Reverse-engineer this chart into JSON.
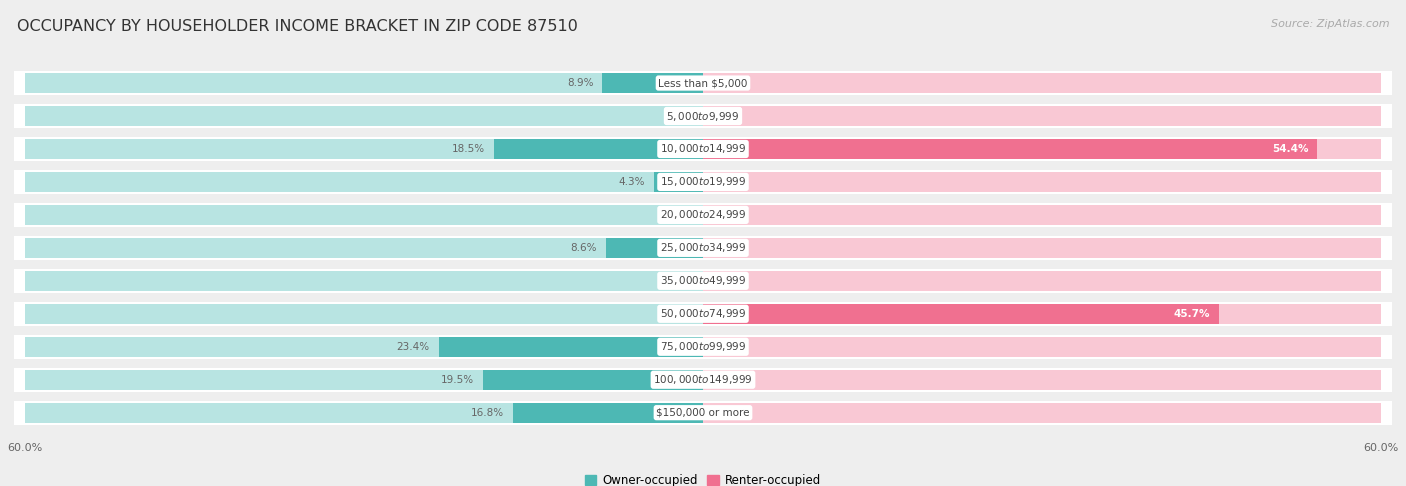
{
  "title": "OCCUPANCY BY HOUSEHOLDER INCOME BRACKET IN ZIP CODE 87510",
  "source": "Source: ZipAtlas.com",
  "categories": [
    "Less than $5,000",
    "$5,000 to $9,999",
    "$10,000 to $14,999",
    "$15,000 to $19,999",
    "$20,000 to $24,999",
    "$25,000 to $34,999",
    "$35,000 to $49,999",
    "$50,000 to $74,999",
    "$75,000 to $99,999",
    "$100,000 to $149,999",
    "$150,000 or more"
  ],
  "owner_values": [
    8.9,
    0.0,
    18.5,
    4.3,
    0.0,
    8.6,
    0.0,
    0.0,
    23.4,
    19.5,
    16.8
  ],
  "renter_values": [
    0.0,
    0.0,
    54.4,
    0.0,
    0.0,
    0.0,
    0.0,
    45.7,
    0.0,
    0.0,
    0.0
  ],
  "owner_color": "#4db8b4",
  "renter_color": "#f07090",
  "owner_color_light": "#b8e4e2",
  "renter_color_light": "#f9c8d4",
  "axis_max": 60.0,
  "background_color": "#eeeeee",
  "bar_bg_color": "#ffffff",
  "label_color_dark": "#666666",
  "label_color_white": "#ffffff",
  "title_fontsize": 11.5,
  "source_fontsize": 8,
  "bar_label_fontsize": 7.5,
  "category_fontsize": 7.5,
  "axis_label_fontsize": 8,
  "legend_fontsize": 8.5
}
